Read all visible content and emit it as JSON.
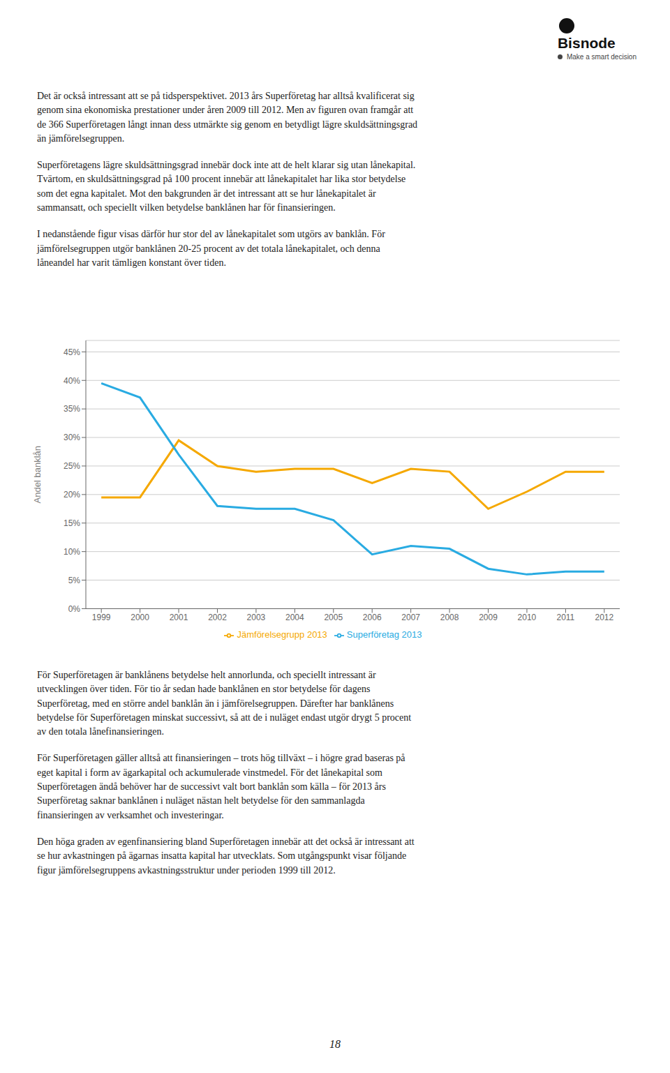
{
  "chart_data": {
    "type": "line",
    "x": [
      1999,
      2000,
      2001,
      2002,
      2003,
      2004,
      2005,
      2006,
      2007,
      2008,
      2009,
      2010,
      2011,
      2012
    ],
    "series": [
      {
        "name": "Jämförelsegrupp 2013",
        "color": "#F5A800",
        "values": [
          19.5,
          19.5,
          29.5,
          25.0,
          24.0,
          24.5,
          24.5,
          22.0,
          24.5,
          24.0,
          17.5,
          20.5,
          24.0,
          24.0
        ]
      },
      {
        "name": "Superföretag 2013",
        "color": "#29ABE2",
        "values": [
          39.5,
          37.0,
          27.0,
          18.0,
          17.5,
          17.5,
          15.5,
          9.5,
          11.0,
          10.5,
          7.0,
          6.0,
          6.5,
          6.5
        ]
      }
    ],
    "ylabel": "Andel banklån",
    "xlim": [
      1998.6,
      2012.4
    ],
    "xticks": [
      1999,
      2000,
      2001,
      2002,
      2003,
      2004,
      2005,
      2006,
      2007,
      2008,
      2009,
      2010,
      2011,
      2012
    ],
    "ylim": [
      0,
      47
    ],
    "yticks": [
      {
        "value": 0,
        "label": "0%"
      },
      {
        "value": 5,
        "label": "5%"
      },
      {
        "value": 10,
        "label": "10%"
      },
      {
        "value": 15,
        "label": "15%"
      },
      {
        "value": 20,
        "label": "20%"
      },
      {
        "value": 25,
        "label": "25%"
      },
      {
        "value": 30,
        "label": "30%"
      },
      {
        "value": 35,
        "label": "35%"
      },
      {
        "value": 40,
        "label": "40%"
      },
      {
        "value": 45,
        "label": "45%"
      }
    ],
    "grid": true,
    "annotations": [
      "Bisnode",
      "Make a smart decision",
      "Det är också intressant att se på tidsperspektivet. 2013 års Superföretag har alltså kvalificerat sig\ngenom sina ekonomiska prestationer under åren 2009 till 2012. Men av figuren ovan framgår att\nde 366 Superföretagen långt innan dess utmärkte sig genom en betydligt lägre skuldsättningsgrad\nän jämförelsegruppen.",
      "Superföretagens lägre skuldsättningsgrad innebär dock inte att de helt klarar sig utan lånekapital.\nTvärtom, en skuldsättningsgrad på 100 procent innebär att lånekapitalet har lika stor betydelse\nsom det egna kapitalet. Mot den bakgrunden är det intressant att se hur lånekapitalet är\nsammansatt, och speciellt vilken betydelse banklånen har för finansieringen.",
      "I nedanstående figur visas därför hur stor del av lånekapitalet som utgörs av banklån. För\njämförelsegruppen utgör banklånen 20-25 procent av det totala lånekapitalet, och denna\nlåneandel har varit tämligen konstant över tiden.",
      "För Superföretagen är banklånens betydelse helt annorlunda, och speciellt intressant är\nutvecklingen över tiden. För tio år sedan hade banklånen en stor betydelse för dagens\nSuperföretag, med en större andel banklån än i jämförelsegruppen. Därefter har banklånens\nbetydelse för Superföretagen minskat successivt, så att de i nuläget endast utgör drygt 5 procent\nav den totala lånefinansieringen.",
      "För Superföretagen gäller alltså att finansieringen – trots hög tillväxt – i högre grad baseras på\neget kapital i form av ägarkapital och ackumulerade vinstmedel. För det lånekapital som\nSuperföretagen ändå behöver har de successivt valt bort banklån som källa – för 2013 års\nSuperföretag saknar banklånen i nuläget nästan helt betydelse för den sammanlagda\nfinansieringen av verksamhet och investeringar.",
      "Den höga graden av egenfinansiering bland Superföretagen innebär att det också är intressant att\nse hur avkastningen på ägarnas insatta kapital har utvecklats. Som utgångspunkt visar följande\nfigur jämförelsegruppens avkastningsstruktur under perioden 1999 till 2012.",
      "18"
    ]
  }
}
